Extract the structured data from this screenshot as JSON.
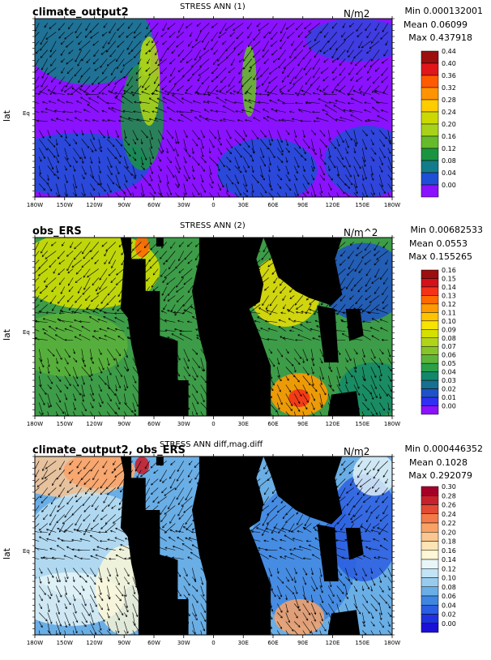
{
  "x_ticks": [
    "180W",
    "150W",
    "120W",
    "90W",
    "60W",
    "30W",
    "0",
    "30E",
    "60E",
    "90E",
    "120E",
    "150E",
    "180W"
  ],
  "y_label": "lat",
  "eq_label": "Eq",
  "panels": [
    {
      "case": "climate_output2",
      "title": "STRESS ANN (1)",
      "units": "N/m2",
      "min": "Min 0.000132001",
      "mean": "Mean 0.06099",
      "max": "Max 0.437918",
      "levels": [
        "0.44",
        "0.40",
        "0.36",
        "0.32",
        "0.28",
        "0.24",
        "0.20",
        "0.16",
        "0.12",
        "0.08",
        "0.04",
        "0.00"
      ],
      "colors": [
        "#9b0f0f",
        "#e0161a",
        "#ff5a00",
        "#ff9400",
        "#ffcc00",
        "#ccd900",
        "#a8d21a",
        "#66bb2a",
        "#1a9440",
        "#137c8a",
        "#1f4fd6",
        "#8a12ff"
      ],
      "background": "#8a12ff"
    },
    {
      "case": "obs_ERS",
      "title": "STRESS ANN (2)",
      "units": "N/m^2",
      "min": "Min 0.00682533",
      "mean": "Mean 0.0553",
      "max": "Max 0.155265",
      "levels": [
        "0.16",
        "0.15",
        "0.14",
        "0.13",
        "0.12",
        "0.11",
        "0.10",
        "0.09",
        "0.08",
        "0.07",
        "0.06",
        "0.05",
        "0.04",
        "0.03",
        "0.02",
        "0.01",
        "0.00"
      ],
      "colors": [
        "#9b0f0f",
        "#d4101a",
        "#f43218",
        "#ff6a00",
        "#ff9a00",
        "#ffc400",
        "#f6e400",
        "#d6e000",
        "#b1d41a",
        "#86c42a",
        "#5db43a",
        "#2aa048",
        "#12886a",
        "#167090",
        "#1f52c8",
        "#3030f0",
        "#8a12ff"
      ],
      "background": "#3d9c48"
    },
    {
      "case": "climate_output2, obs_ERS",
      "title": "STRESS ANN diff,mag.diff",
      "units": "N/m2",
      "min": "Min 0.000446352",
      "mean": "Mean 0.1028",
      "max": "Max 0.292079",
      "levels": [
        "0.30",
        "0.28",
        "0.26",
        "0.24",
        "0.22",
        "0.20",
        "0.18",
        "0.16",
        "0.14",
        "0.12",
        "0.10",
        "0.08",
        "0.06",
        "0.04",
        "0.02",
        "0.00"
      ],
      "colors": [
        "#a50026",
        "#c8202c",
        "#e24a34",
        "#f47a4a",
        "#f9a266",
        "#fcc690",
        "#fde4b4",
        "#fff7d6",
        "#e8f6f8",
        "#c2e4f4",
        "#98ccee",
        "#6aaee6",
        "#3f86e0",
        "#2b5ee0",
        "#1f32e0",
        "#1a10d6"
      ],
      "background": "#6aaee6"
    }
  ]
}
